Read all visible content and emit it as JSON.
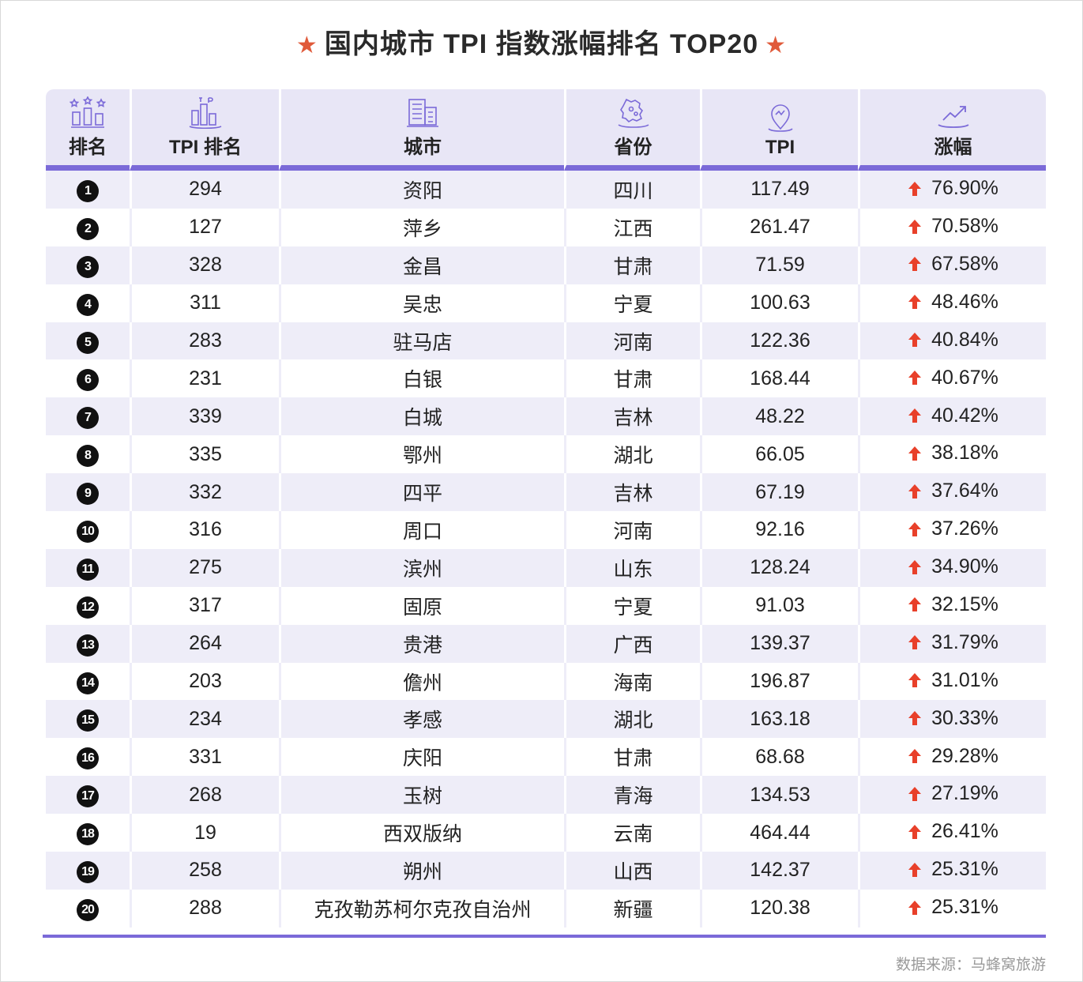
{
  "title": "国内城市 TPI 指数涨幅排名 TOP20",
  "accent_color": "#7b6ad8",
  "star_color": "#e05a3a",
  "arrow_color": "#e8402a",
  "header": {
    "rank": "排名",
    "tpi_rank": "TPI 排名",
    "city": "城市",
    "province": "省份",
    "tpi": "TPI",
    "growth": "涨幅"
  },
  "header_icons": [
    "podium-stars-icon",
    "tpi-bars-icon",
    "building-icon",
    "map-province-icon",
    "location-pin-icon",
    "trend-up-icon"
  ],
  "rows": [
    {
      "rank": "1",
      "tpi_rank": "294",
      "city": "资阳",
      "province": "四川",
      "tpi": "117.49",
      "growth": "76.90%"
    },
    {
      "rank": "2",
      "tpi_rank": "127",
      "city": "萍乡",
      "province": "江西",
      "tpi": "261.47",
      "growth": "70.58%"
    },
    {
      "rank": "3",
      "tpi_rank": "328",
      "city": "金昌",
      "province": "甘肃",
      "tpi": "71.59",
      "growth": "67.58%"
    },
    {
      "rank": "4",
      "tpi_rank": "311",
      "city": "吴忠",
      "province": "宁夏",
      "tpi": "100.63",
      "growth": "48.46%"
    },
    {
      "rank": "5",
      "tpi_rank": "283",
      "city": "驻马店",
      "province": "河南",
      "tpi": "122.36",
      "growth": "40.84%"
    },
    {
      "rank": "6",
      "tpi_rank": "231",
      "city": "白银",
      "province": "甘肃",
      "tpi": "168.44",
      "growth": "40.67%"
    },
    {
      "rank": "7",
      "tpi_rank": "339",
      "city": "白城",
      "province": "吉林",
      "tpi": "48.22",
      "growth": "40.42%"
    },
    {
      "rank": "8",
      "tpi_rank": "335",
      "city": "鄂州",
      "province": "湖北",
      "tpi": "66.05",
      "growth": "38.18%"
    },
    {
      "rank": "9",
      "tpi_rank": "332",
      "city": "四平",
      "province": "吉林",
      "tpi": "67.19",
      "growth": "37.64%"
    },
    {
      "rank": "10",
      "tpi_rank": "316",
      "city": "周口",
      "province": "河南",
      "tpi": "92.16",
      "growth": "37.26%"
    },
    {
      "rank": "11",
      "tpi_rank": "275",
      "city": "滨州",
      "province": "山东",
      "tpi": "128.24",
      "growth": "34.90%"
    },
    {
      "rank": "12",
      "tpi_rank": "317",
      "city": "固原",
      "province": "宁夏",
      "tpi": "91.03",
      "growth": "32.15%"
    },
    {
      "rank": "13",
      "tpi_rank": "264",
      "city": "贵港",
      "province": "广西",
      "tpi": "139.37",
      "growth": "31.79%"
    },
    {
      "rank": "14",
      "tpi_rank": "203",
      "city": "儋州",
      "province": "海南",
      "tpi": "196.87",
      "growth": "31.01%"
    },
    {
      "rank": "15",
      "tpi_rank": "234",
      "city": "孝感",
      "province": "湖北",
      "tpi": "163.18",
      "growth": "30.33%"
    },
    {
      "rank": "16",
      "tpi_rank": "331",
      "city": "庆阳",
      "province": "甘肃",
      "tpi": "68.68",
      "growth": "29.28%"
    },
    {
      "rank": "17",
      "tpi_rank": "268",
      "city": "玉树",
      "province": "青海",
      "tpi": "134.53",
      "growth": "27.19%"
    },
    {
      "rank": "18",
      "tpi_rank": "19",
      "city": "西双版纳",
      "province": "云南",
      "tpi": "464.44",
      "growth": "26.41%"
    },
    {
      "rank": "19",
      "tpi_rank": "258",
      "city": "朔州",
      "province": "山西",
      "tpi": "142.37",
      "growth": "25.31%"
    },
    {
      "rank": "20",
      "tpi_rank": "288",
      "city": "克孜勒苏柯尔克孜自治州",
      "province": "新疆",
      "tpi": "120.38",
      "growth": "25.31%"
    }
  ],
  "source": "数据来源：马蜂窝旅游"
}
